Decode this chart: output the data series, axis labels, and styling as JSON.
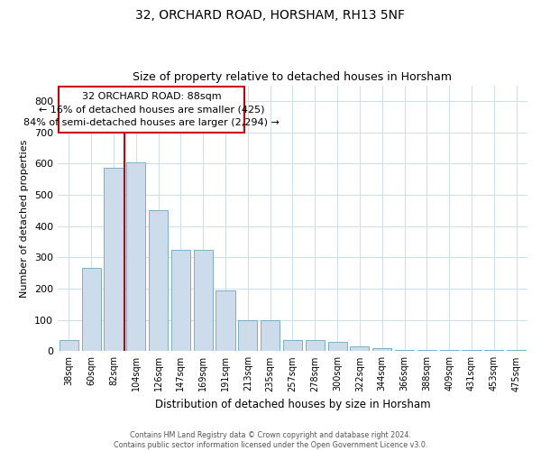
{
  "title_line1": "32, ORCHARD ROAD, HORSHAM, RH13 5NF",
  "title_line2": "Size of property relative to detached houses in Horsham",
  "xlabel": "Distribution of detached houses by size in Horsham",
  "ylabel": "Number of detached properties",
  "footer_line1": "Contains HM Land Registry data © Crown copyright and database right 2024.",
  "footer_line2": "Contains public sector information licensed under the Open Government Licence v3.0.",
  "categories": [
    "38sqm",
    "60sqm",
    "82sqm",
    "104sqm",
    "126sqm",
    "147sqm",
    "169sqm",
    "191sqm",
    "213sqm",
    "235sqm",
    "257sqm",
    "278sqm",
    "300sqm",
    "322sqm",
    "344sqm",
    "366sqm",
    "388sqm",
    "409sqm",
    "431sqm",
    "453sqm",
    "475sqm"
  ],
  "values": [
    35,
    265,
    585,
    605,
    450,
    325,
    325,
    195,
    100,
    100,
    35,
    35,
    30,
    15,
    10,
    5,
    5,
    5,
    5,
    5,
    5
  ],
  "bar_color": "#cddceb",
  "bar_edge_color": "#7aafc8",
  "grid_color": "#d0dfe8",
  "annotation_box_color": "#cc0000",
  "vline_color": "#cc0000",
  "vline_x": 2.5,
  "annotation_text_line1": "32 ORCHARD ROAD: 88sqm",
  "annotation_text_line2": "← 16% of detached houses are smaller (425)",
  "annotation_text_line3": "84% of semi-detached houses are larger (2,294) →",
  "ylim": [
    0,
    850
  ],
  "yticks": [
    0,
    100,
    200,
    300,
    400,
    500,
    600,
    700,
    800
  ],
  "figwidth": 6.0,
  "figheight": 5.0,
  "dpi": 100
}
